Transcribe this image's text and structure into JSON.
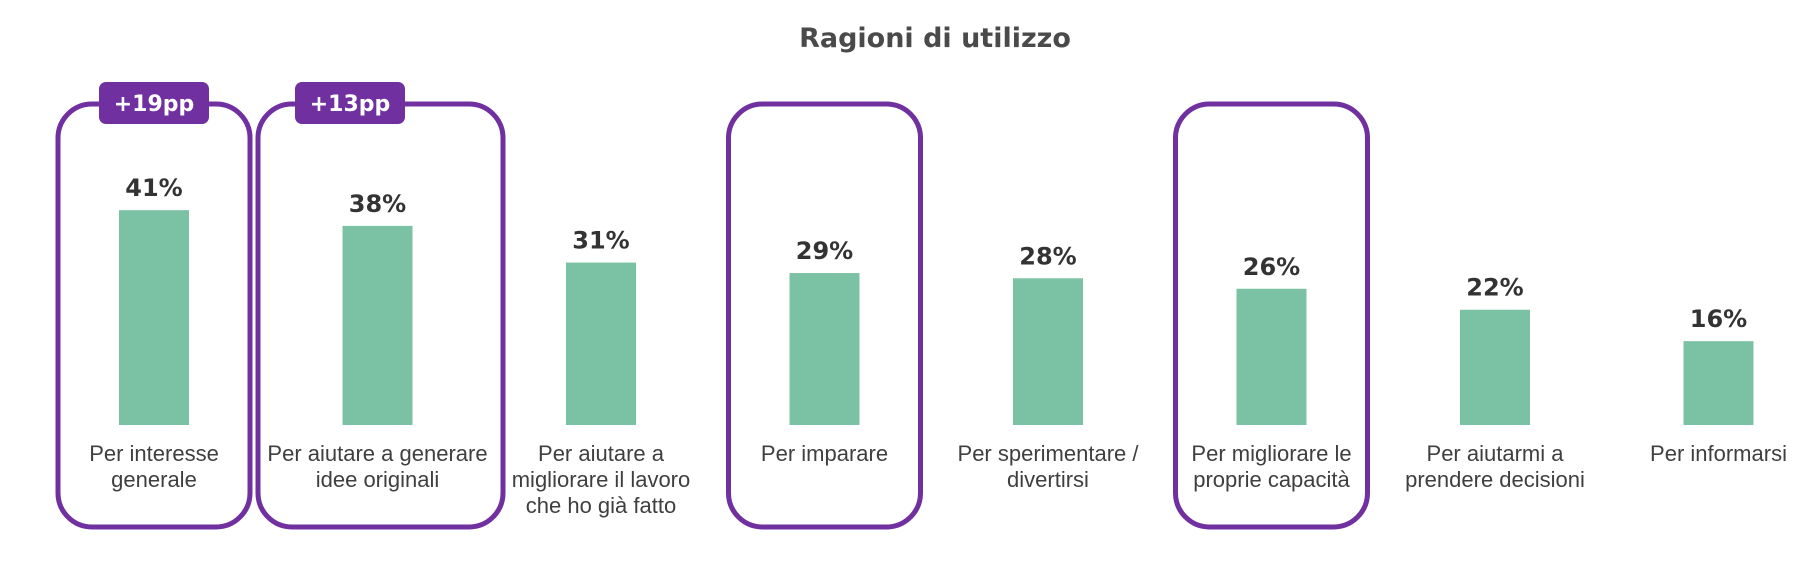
{
  "chart_data": {
    "type": "bar",
    "title": "Ragioni di utilizzo",
    "categories": [
      [
        "Per interesse",
        "generale"
      ],
      [
        "Per aiutare a generare",
        "idee originali"
      ],
      [
        "Per aiutare a",
        "migliorare il lavoro",
        "che ho già fatto"
      ],
      [
        "Per imparare"
      ],
      [
        "Per sperimentare /",
        "divertirsi"
      ],
      [
        "Per migliorare le",
        "proprie capacità"
      ],
      [
        "Per aiutarmi a",
        "prendere decisioni"
      ],
      [
        "Per informarsi"
      ]
    ],
    "values": [
      41,
      38,
      31,
      29,
      28,
      26,
      22,
      16
    ],
    "value_labels": [
      "41%",
      "38%",
      "31%",
      "29%",
      "28%",
      "26%",
      "22%",
      "16%"
    ],
    "highlighted": [
      0,
      1,
      3,
      5
    ],
    "badges": [
      {
        "index": 0,
        "text": "+19pp"
      },
      {
        "index": 1,
        "text": "+13pp"
      }
    ],
    "ylim": [
      0,
      45
    ],
    "colors": {
      "bar": "#7bc1a3",
      "highlight": "#7030a0",
      "badge": "#7030a0"
    }
  }
}
